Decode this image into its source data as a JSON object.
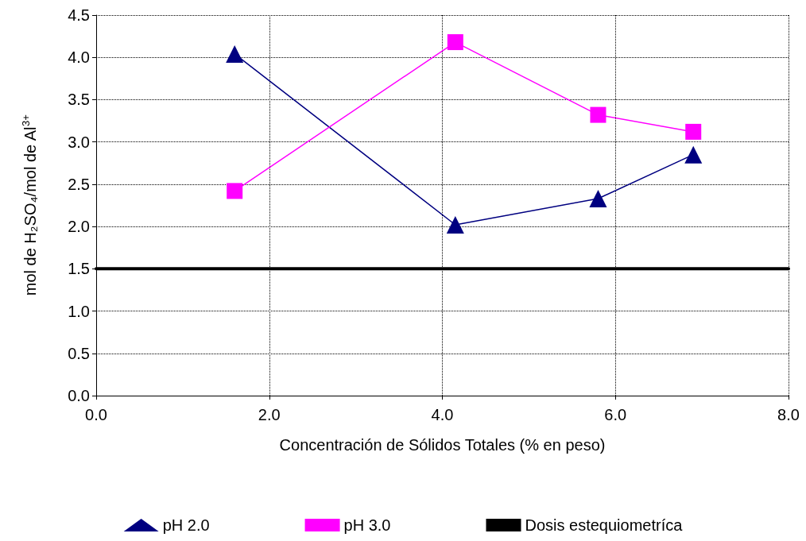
{
  "chart_data": {
    "type": "line",
    "xlabel": "Concentración de Sólidos Totales (% en peso)",
    "ylabel": "mol de H₂SO₄/mol de Al$^{3+}$",
    "xlim": [
      0,
      8
    ],
    "xticks": [
      {
        "value": 0,
        "label": "0.0"
      },
      {
        "value": 2,
        "label": "2.0"
      },
      {
        "value": 4,
        "label": "4.0"
      },
      {
        "value": 6,
        "label": "6.0"
      },
      {
        "value": 8,
        "label": "8.0"
      }
    ],
    "ylim": [
      0,
      4.5
    ],
    "yticks": [
      {
        "value": 0,
        "label": "0.0"
      },
      {
        "value": 0.5,
        "label": "0.5"
      },
      {
        "value": 1,
        "label": "1.0"
      },
      {
        "value": 1.5,
        "label": "1.5"
      },
      {
        "value": 2,
        "label": "2.0"
      },
      {
        "value": 2.5,
        "label": "2.5"
      },
      {
        "value": 3,
        "label": "3.0"
      },
      {
        "value": 3.5,
        "label": "3.5"
      },
      {
        "value": 4,
        "label": "4.0"
      },
      {
        "value": 4.5,
        "label": "4.5"
      }
    ],
    "grid": true,
    "legend": "bottom",
    "line_style": "solid",
    "series": [
      {
        "name": "pH 2.0",
        "color": "#000080",
        "marker": "triangle",
        "x": [
          1.6,
          4.15,
          5.8,
          6.9
        ],
        "values": [
          4.04,
          2.02,
          2.33,
          2.85
        ]
      },
      {
        "name": "pH 3.0",
        "color": "#ff00ff",
        "marker": "square",
        "x": [
          1.6,
          4.15,
          5.8,
          6.9
        ],
        "values": [
          2.42,
          4.18,
          3.32,
          3.12
        ]
      },
      {
        "name": "Dosis estequiometríca",
        "color": "#000000",
        "marker": "none",
        "x": [
          0,
          8
        ],
        "values": [
          1.5,
          1.5
        ]
      }
    ]
  }
}
